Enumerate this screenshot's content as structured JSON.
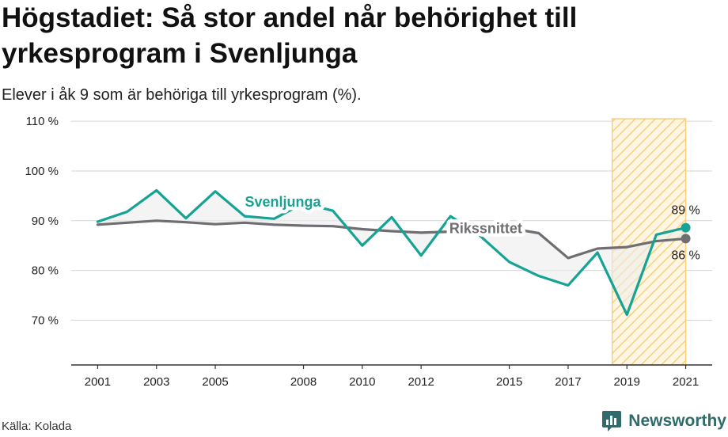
{
  "title": "Högstadiet: Så stor andel når behörighet till yrkesprogram i Svenljunga",
  "subtitle": "Elever i åk 9 som är behöriga till yrkesprogram (%).",
  "source": "Källa: Kolada",
  "brand": {
    "name": "Newsworthy",
    "icon": "newsworthy-logo-icon",
    "color": "#2f6b6b"
  },
  "chart_data": {
    "type": "line",
    "x": [
      2001,
      2002,
      2003,
      2004,
      2005,
      2006,
      2007,
      2008,
      2009,
      2010,
      2011,
      2012,
      2013,
      2014,
      2015,
      2016,
      2017,
      2018,
      2019,
      2020,
      2021
    ],
    "x_ticks": [
      2001,
      2003,
      2005,
      2008,
      2010,
      2012,
      2015,
      2017,
      2019,
      2021
    ],
    "y_ticks": [
      70,
      80,
      90,
      100,
      110
    ],
    "y_tick_labels": [
      "70 %",
      "80 %",
      "90 %",
      "100 %",
      "110 %"
    ],
    "ylim": [
      61,
      110.5
    ],
    "xlim": [
      2000.1,
      2021.9
    ],
    "highlight_range": [
      2018.5,
      2021
    ],
    "series": [
      {
        "name": "Svenljunga",
        "color": "#16a394",
        "values": [
          89.8,
          91.8,
          96.1,
          90.5,
          95.9,
          90.9,
          90.4,
          93.5,
          92.0,
          85.0,
          90.7,
          83.0,
          90.9,
          87.0,
          81.7,
          78.9,
          77.0,
          83.6,
          71.1,
          87.2,
          88.6
        ],
        "end_label": "89 %"
      },
      {
        "name": "Rikssnittet",
        "color": "#6e6e73",
        "values": [
          89.2,
          89.6,
          90.0,
          89.7,
          89.3,
          89.6,
          89.2,
          89.0,
          88.9,
          88.3,
          87.9,
          87.6,
          87.8,
          88.2,
          88.5,
          87.5,
          82.5,
          84.4,
          84.7,
          85.9,
          86.4
        ],
        "end_label": "86 %"
      }
    ]
  }
}
